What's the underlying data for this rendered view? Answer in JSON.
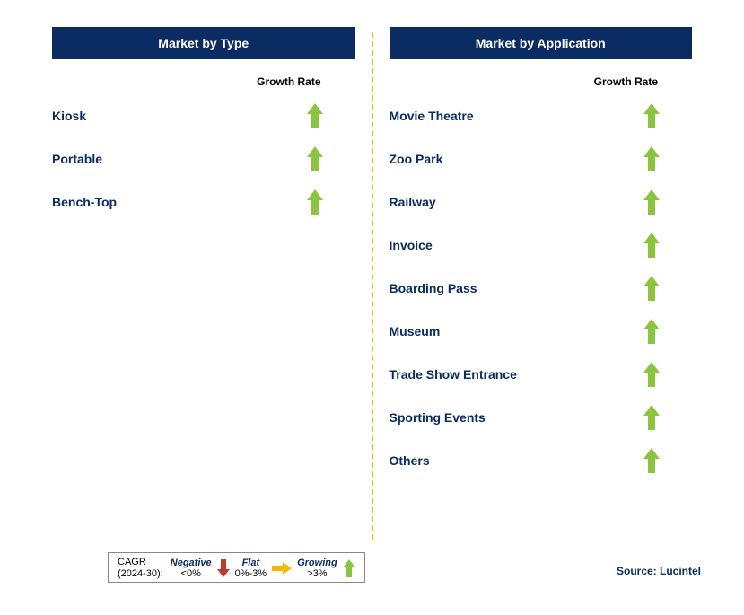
{
  "left": {
    "title": "Market by Type",
    "growth_header": "Growth Rate",
    "items": [
      {
        "label": "Kiosk",
        "trend": "up"
      },
      {
        "label": "Portable",
        "trend": "up"
      },
      {
        "label": "Bench-Top",
        "trend": "up"
      }
    ]
  },
  "right": {
    "title": "Market by Application",
    "growth_header": "Growth Rate",
    "items": [
      {
        "label": "Movie Theatre",
        "trend": "up"
      },
      {
        "label": "Zoo Park",
        "trend": "up"
      },
      {
        "label": "Railway",
        "trend": "up"
      },
      {
        "label": "Invoice",
        "trend": "up"
      },
      {
        "label": "Boarding Pass",
        "trend": "up"
      },
      {
        "label": "Museum",
        "trend": "up"
      },
      {
        "label": "Trade Show Entrance",
        "trend": "up"
      },
      {
        "label": "Sporting Events",
        "trend": "up"
      },
      {
        "label": "Others",
        "trend": "up"
      }
    ]
  },
  "legend": {
    "title_line1": "CAGR",
    "title_line2": "(2024-30):",
    "segments": [
      {
        "label": "Negative",
        "range": "<0%",
        "icon": "down",
        "color": "#c0392b"
      },
      {
        "label": "Flat",
        "range": "0%-3%",
        "icon": "right",
        "color": "#f5b800"
      },
      {
        "label": "Growing",
        "range": ">3%",
        "icon": "up",
        "color": "#8bc53f"
      }
    ]
  },
  "source": "Source: Lucintel",
  "colors": {
    "header_bg": "#0b2b63",
    "text_primary": "#0b2b63",
    "divider": "#f5b800",
    "arrow_up": "#8bc53f",
    "arrow_down": "#c0392b",
    "arrow_flat": "#f5b800",
    "background": "#ffffff"
  }
}
